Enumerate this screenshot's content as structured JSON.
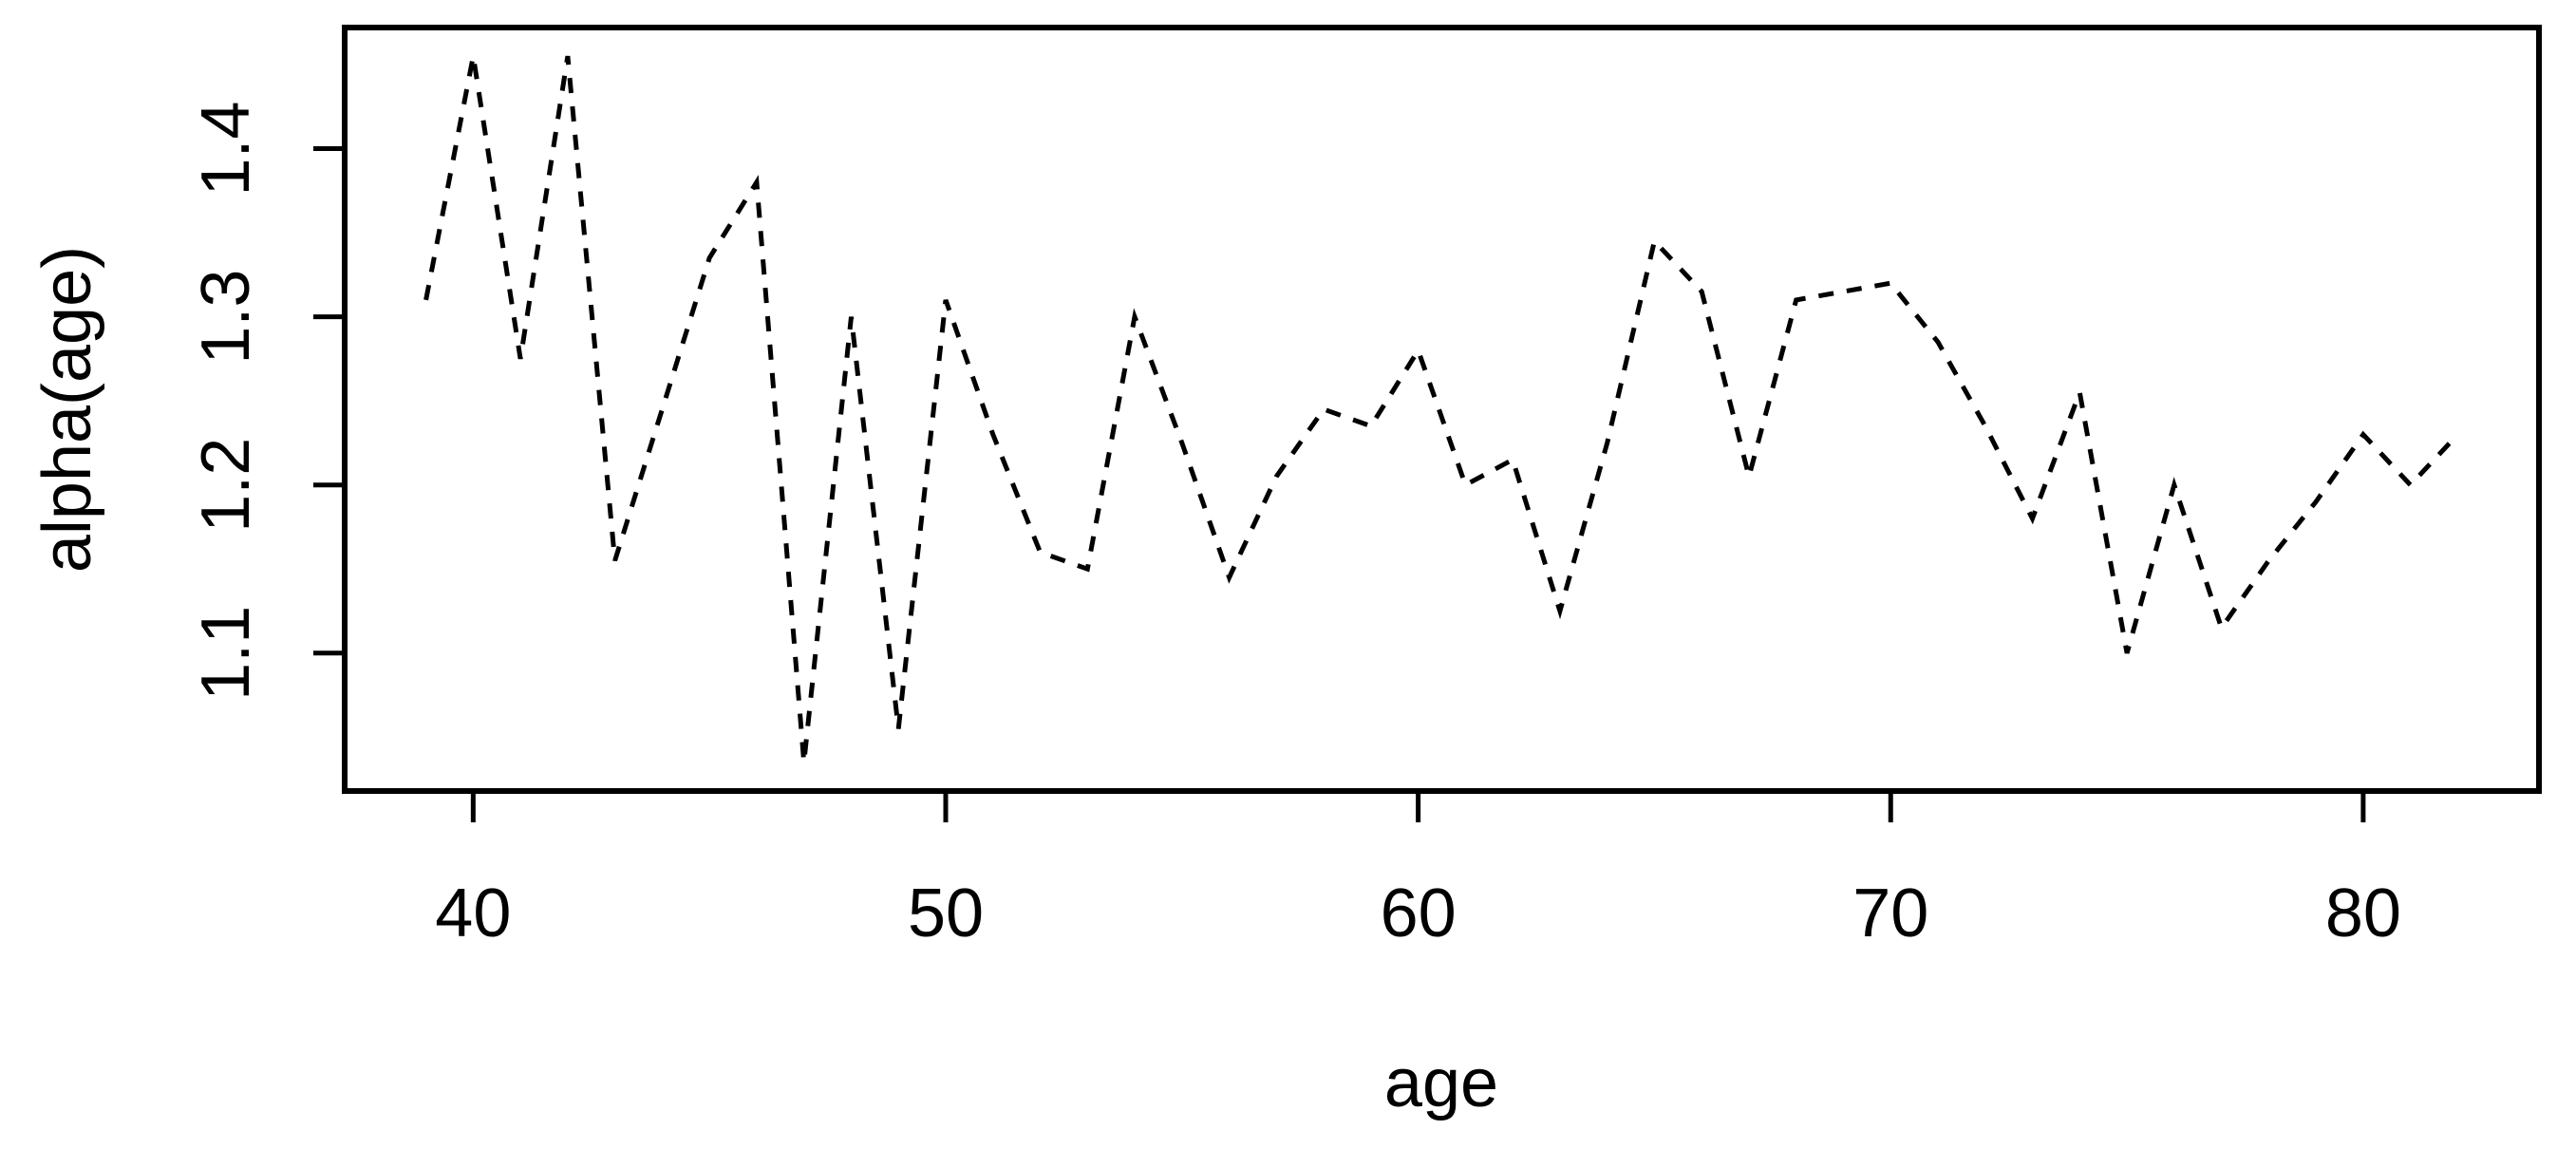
{
  "figure": {
    "background": "#ffffff",
    "axis_color": "#000000"
  },
  "chart_data": {
    "type": "line",
    "title": "",
    "xlabel": "age",
    "ylabel": "alpha(age)",
    "x_ticks": [
      "40",
      "50",
      "60",
      "70",
      "80"
    ],
    "y_ticks": [
      "1.1",
      "1.2",
      "1.3",
      "1.4"
    ],
    "xlim": [
      37.28,
      83.72
    ],
    "ylim": [
      1.018,
      1.472
    ],
    "grid": "off",
    "legend": "none",
    "line_style": "dashed",
    "line_color": "#000000",
    "series": [
      {
        "name": "alpha(age)",
        "x": [
          39,
          40,
          41,
          42,
          43,
          44,
          45,
          46,
          47,
          48,
          49,
          50,
          51,
          52,
          53,
          54,
          55,
          56,
          57,
          58,
          59,
          60,
          61,
          62,
          63,
          64,
          65,
          66,
          67,
          68,
          69,
          70,
          71,
          72,
          73,
          74,
          75,
          76,
          77,
          78,
          79,
          80,
          81,
          82
        ],
        "y": [
          1.31,
          1.455,
          1.275,
          1.455,
          1.155,
          1.245,
          1.335,
          1.38,
          1.035,
          1.3,
          1.055,
          1.31,
          1.23,
          1.16,
          1.15,
          1.3,
          1.225,
          1.145,
          1.205,
          1.245,
          1.235,
          1.28,
          1.2,
          1.215,
          1.125,
          1.225,
          1.345,
          1.315,
          1.205,
          1.31,
          1.315,
          1.32,
          1.285,
          1.235,
          1.18,
          1.255,
          1.1,
          1.2,
          1.115,
          1.155,
          1.19,
          1.23,
          1.2,
          1.23
        ]
      }
    ]
  }
}
